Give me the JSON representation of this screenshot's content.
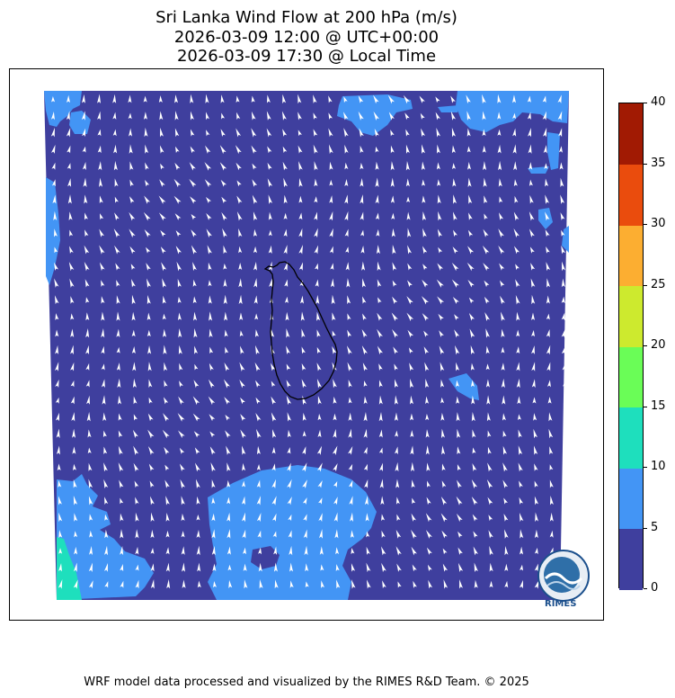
{
  "header": {
    "title_line1": "Sri Lanka Wind Flow at 200 hPa (m/s)",
    "title_line2": "2026-03-09 12:00 @ UTC+00:00",
    "title_line3": "2026-03-09 17:30 @ Local Time"
  },
  "colorbar": {
    "ticks": [
      "0",
      "5",
      "10",
      "15",
      "20",
      "25",
      "30",
      "35",
      "40"
    ],
    "colors": [
      "#3f3f9e",
      "#4395f5",
      "#1edfbd",
      "#6afd57",
      "#cdea2e",
      "#fcae31",
      "#ea4c0d",
      "#a11a03"
    ]
  },
  "map": {
    "background_color": "#3f3f9e",
    "light_band_color": "#4395f5",
    "teal_color": "#1edfbd",
    "arrow_color": "#ffffff",
    "coastline_color": "#000000"
  },
  "logo": {
    "text": "RIMES"
  },
  "footer": {
    "credit": "WRF model data processed and visualized by the RIMES R&D Team. © 2025"
  }
}
